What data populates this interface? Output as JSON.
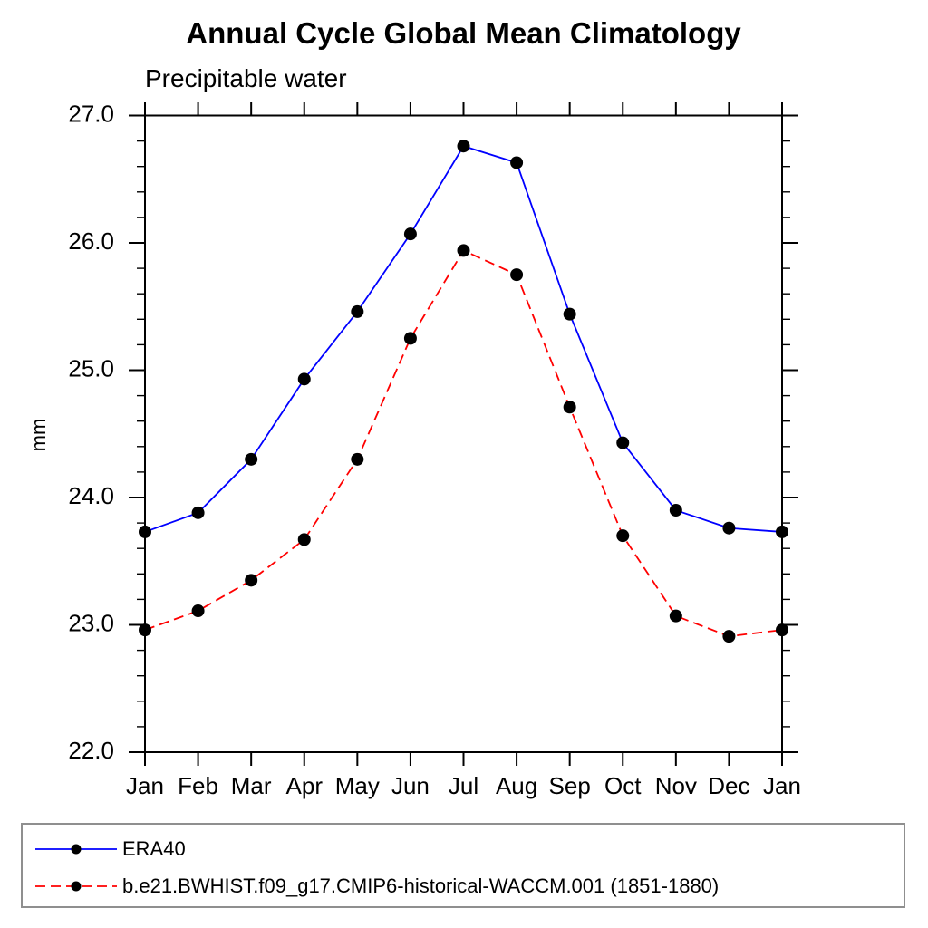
{
  "title": "Annual Cycle Global Mean Climatology",
  "subtitle": "Precipitable water",
  "ylabel": "mm",
  "colors": {
    "background": "#ffffff",
    "axis": "#000000",
    "text": "#000000",
    "era40_line": "#0000ff",
    "model_line": "#ff0000",
    "marker": "#000000",
    "legend_border": "#8f8f8f"
  },
  "chart_data": {
    "type": "line",
    "categories": [
      "Jan",
      "Feb",
      "Mar",
      "Apr",
      "May",
      "Jun",
      "Jul",
      "Aug",
      "Sep",
      "Oct",
      "Nov",
      "Dec",
      "Jan"
    ],
    "xlabel": "",
    "ylabel": "mm",
    "ylim": [
      22.0,
      27.0
    ],
    "ytick_major_interval": 1.0,
    "ytick_minor_interval": 0.2,
    "ytick_labels": [
      "22.0",
      "23.0",
      "24.0",
      "25.0",
      "26.0",
      "27.0"
    ],
    "grid": false,
    "legend_position": "bottom-left-box",
    "series": [
      {
        "name": "ERA40",
        "color": "#0000ff",
        "line_style": "solid",
        "marker": "filled-circle",
        "marker_color": "#000000",
        "values": [
          23.73,
          23.88,
          24.3,
          24.93,
          25.46,
          26.07,
          26.76,
          26.63,
          25.44,
          24.43,
          23.9,
          23.76,
          23.73
        ]
      },
      {
        "name": "b.e21.BWHIST.f09_g17.CMIP6-historical-WACCM.001 (1851-1880)",
        "color": "#ff0000",
        "line_style": "dashed",
        "marker": "filled-circle",
        "marker_color": "#000000",
        "values": [
          22.96,
          23.11,
          23.35,
          23.67,
          24.3,
          25.25,
          25.94,
          25.75,
          24.71,
          23.7,
          23.07,
          22.91,
          22.96
        ]
      }
    ]
  }
}
